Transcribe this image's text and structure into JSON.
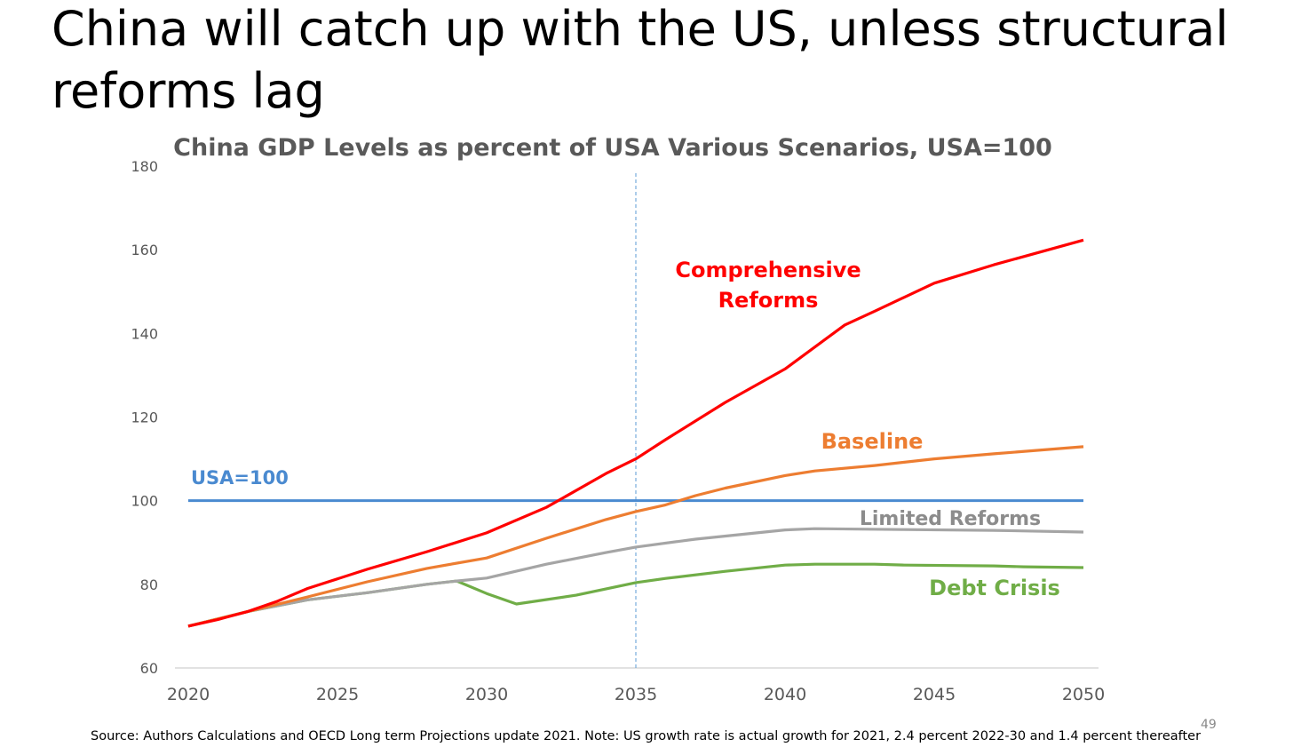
{
  "slide": {
    "title": "China will catch up with the US, unless structural reforms lag",
    "footnote": "Source: Authors Calculations and OECD Long term Projections update 2021.  Note: US growth rate is actual growth for 2021, 2.4 percent 2022-30 and 1.4 percent thereafter",
    "page_number": "49"
  },
  "chart_data": {
    "type": "line",
    "title": "China GDP Levels as percent of USA Various Scenarios, USA=100",
    "xlabel": "",
    "ylabel": "",
    "xlim": [
      2020,
      2050
    ],
    "ylim": [
      60,
      180
    ],
    "x_ticks": [
      "2020",
      "2025",
      "2030",
      "2035",
      "2040",
      "2045",
      "2050"
    ],
    "y_ticks": [
      "60",
      "80",
      "100",
      "120",
      "140",
      "160",
      "180"
    ],
    "vertical_marker": {
      "x": 2035,
      "style": "dashed",
      "color": "#5b9bd5"
    },
    "reference_line": {
      "name": "USA=100",
      "value": 100,
      "color": "#4a8ad0",
      "label": "USA=100"
    },
    "series": [
      {
        "name": "Comprehensive Reforms",
        "label_lines": [
          "Comprehensive",
          "Reforms"
        ],
        "color": "#ff0000",
        "x": [
          2020,
          2021,
          2022,
          2023,
          2024,
          2026,
          2028,
          2030,
          2032,
          2034,
          2035,
          2036,
          2038,
          2040,
          2042,
          2043,
          2045,
          2047,
          2050
        ],
        "values": [
          70,
          71.6,
          73.5,
          76,
          79,
          83.6,
          87.8,
          92.3,
          98.4,
          106.5,
          110,
          114.6,
          123.5,
          131.5,
          142,
          145.3,
          152,
          156.4,
          162.3
        ]
      },
      {
        "name": "Baseline",
        "label_lines": [
          "Baseline"
        ],
        "color": "#ed7d31",
        "x": [
          2020,
          2022,
          2024,
          2026,
          2028,
          2030,
          2032,
          2034,
          2035,
          2036,
          2037,
          2038,
          2040,
          2041,
          2043,
          2045,
          2047,
          2050
        ],
        "values": [
          70,
          73.5,
          77,
          80.6,
          83.8,
          86.3,
          91,
          95.5,
          97.4,
          99,
          101.2,
          103,
          106,
          107.1,
          108.4,
          110,
          111.2,
          112.9
        ]
      },
      {
        "name": "Limited Reforms",
        "label_lines": [
          "Limited Reforms"
        ],
        "color": "#a5a5a5",
        "x": [
          2020,
          2022,
          2024,
          2026,
          2028,
          2029,
          2030,
          2032,
          2034,
          2035,
          2037,
          2040,
          2041,
          2044,
          2047,
          2050
        ],
        "values": [
          70,
          73.5,
          76.3,
          78,
          80,
          80.8,
          81.5,
          84.8,
          87.6,
          88.9,
          90.8,
          93,
          93.3,
          93.1,
          92.9,
          92.5
        ]
      },
      {
        "name": "Debt Crisis",
        "label_lines": [
          "Debt Crisis"
        ],
        "color": "#70ad47",
        "x": [
          2020,
          2022,
          2024,
          2026,
          2028,
          2029,
          2030,
          2031,
          2033,
          2035,
          2036,
          2038,
          2040,
          2041,
          2043,
          2044,
          2047,
          2048,
          2050
        ],
        "values": [
          70,
          73.5,
          76.3,
          78,
          80,
          80.8,
          77.8,
          75.3,
          77.4,
          80.4,
          81.4,
          83.1,
          84.6,
          84.8,
          84.8,
          84.6,
          84.4,
          84.2,
          84
        ]
      }
    ]
  }
}
